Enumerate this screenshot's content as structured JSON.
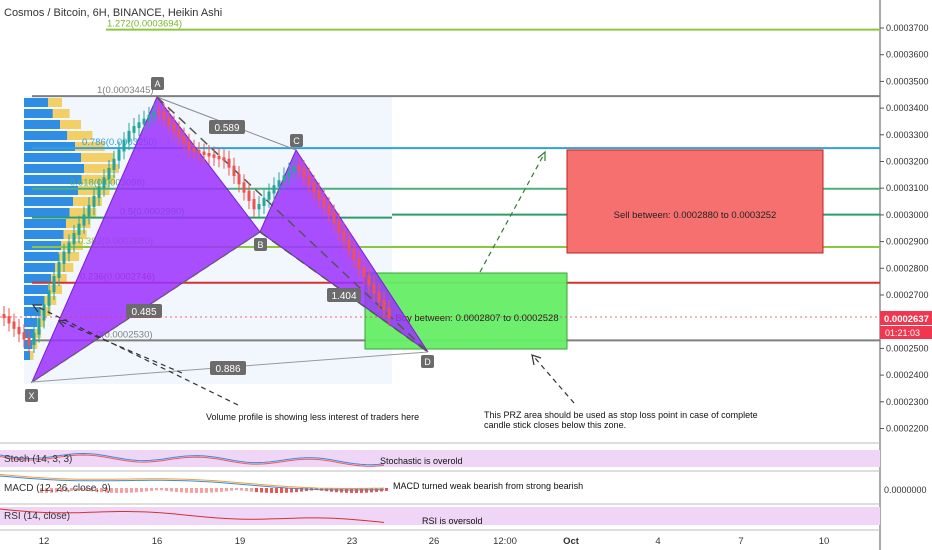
{
  "chart_title": "Cosmos / Bitcoin, 6H, BINANCE, Heikin Ashi",
  "price_axis": {
    "ticks": [
      "0.0003700",
      "0.0003600",
      "0.0003500",
      "0.0003400",
      "0.0003300",
      "0.0003200",
      "0.0003100",
      "0.0003000",
      "0.0002900",
      "0.0002800",
      "0.0002700",
      "0.0002600",
      "0.0002500",
      "0.0002400",
      "0.0002300",
      "0.0002200"
    ],
    "current_price": "0.0002637",
    "countdown": "01:21:03",
    "price_color": "#f0374f"
  },
  "time_axis": {
    "labels": [
      "12",
      "16",
      "19",
      "23",
      "26",
      "12:00",
      "Oct",
      "4",
      "7",
      "10"
    ]
  },
  "fib_levels": [
    {
      "label": "1.272(0.0003694)",
      "color": "#8cc63f"
    },
    {
      "label": "1(0.0003445)",
      "color": "#808080"
    },
    {
      "label": "0.786(0.0003250)",
      "color": "#33a0d9"
    },
    {
      "label": "0.618(0.0003098)",
      "color": "#4caf7a"
    },
    {
      "label": "0.5(0.0002990)",
      "color": "#2e9c6a"
    },
    {
      "label": "0.382(0.0002880)",
      "color": "#8cc63f"
    },
    {
      "label": "0.236(0.0002746)",
      "color": "#d63031"
    },
    {
      "label": "0(0.0002530)",
      "color": "#808080"
    }
  ],
  "pattern_points": {
    "X": "X",
    "A": "A",
    "B": "B",
    "C": "C",
    "D": "D"
  },
  "ratios": {
    "xb": "0.485",
    "ac": "0.589",
    "bd": "1.404",
    "xd": "0.886"
  },
  "zones": {
    "buy": {
      "text": "Buy between: 0.0002807 to 0.0002528",
      "color": "#66ee66"
    },
    "sell": {
      "text": "Sell between: 0.0002880 to 0.0003252",
      "color": "#f77070"
    }
  },
  "annotations": {
    "volume": "Volume profile is showing less interest of traders here",
    "prz_line1": "This PRZ area should be used as stop loss point in case of complete",
    "prz_line2": "candle stick closes below this zone."
  },
  "indicators": {
    "stoch": {
      "label": "Stoch (14, 3, 3)",
      "note": "Stochastic is overold"
    },
    "macd": {
      "label": "MACD (12, 26, close, 9)",
      "note": "MACD turned weak bearish from strong bearish",
      "axis": "0.0000000"
    },
    "rsi": {
      "label": "RSI (14, close)",
      "note": "RSI is oversold"
    }
  },
  "chart_data": {
    "type": "candlestick",
    "title": "Cosmos / Bitcoin, 6H, BINANCE, Heikin Ashi",
    "ylim": [
      0.000219,
      0.00038
    ],
    "pattern": {
      "X": {
        "time": "12",
        "price": 0.0002415
      },
      "A": {
        "time": "16",
        "price": 0.0003445
      },
      "B": {
        "time": "19",
        "price": 0.0002945
      },
      "C": {
        "time": "21",
        "price": 0.0003245
      },
      "D": {
        "time": "26",
        "price": 0.000253
      }
    },
    "fib_values": [
      0.0003694,
      0.0003445,
      0.000325,
      0.0003098,
      0.000299,
      0.000288,
      0.0002746,
      0.000253
    ],
    "buy_zone": [
      0.0002528,
      0.0002807
    ],
    "sell_zone": [
      0.000288,
      0.0003252
    ],
    "current_price": 0.0002637
  }
}
